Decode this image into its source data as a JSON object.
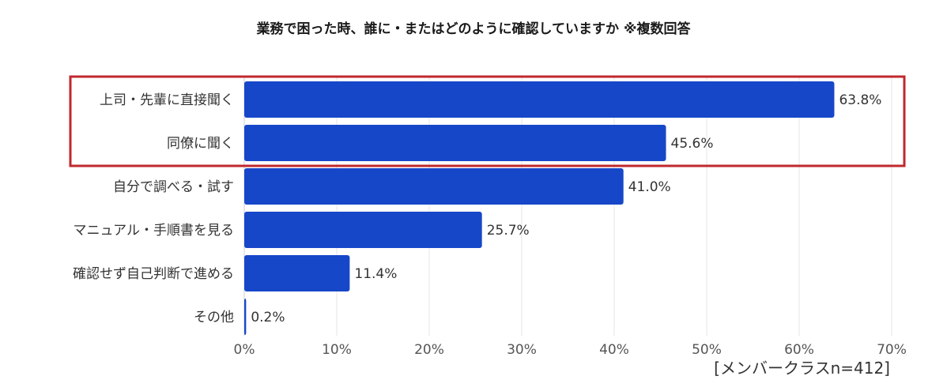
{
  "chart_data": {
    "type": "bar",
    "orientation": "horizontal",
    "title": "業務で困った時、誰に・またはどのように確認していますか ※複数回答",
    "categories": [
      "上司・先輩に直接聞く",
      "同僚に聞く",
      "自分で調べる・試す",
      "マニュアル・手順書を見る",
      "確認せず自己判断で進める",
      "その他"
    ],
    "values": [
      63.8,
      45.6,
      41.0,
      25.7,
      11.4,
      0.2
    ],
    "value_labels": [
      "63.8%",
      "45.6%",
      "41.0%",
      "25.7%",
      "11.4%",
      "0.2%"
    ],
    "xlim": [
      0,
      70
    ],
    "x_ticks": [
      "0%",
      "10%",
      "20%",
      "30%",
      "40%",
      "50%",
      "60%",
      "70%"
    ],
    "grid": true,
    "highlighted_categories": [
      "上司・先輩に直接聞く",
      "同僚に聞く"
    ],
    "bar_color": "#1747c9",
    "highlight_box_color": "#c0282d",
    "footnote": "[メンバークラスn=412]"
  }
}
